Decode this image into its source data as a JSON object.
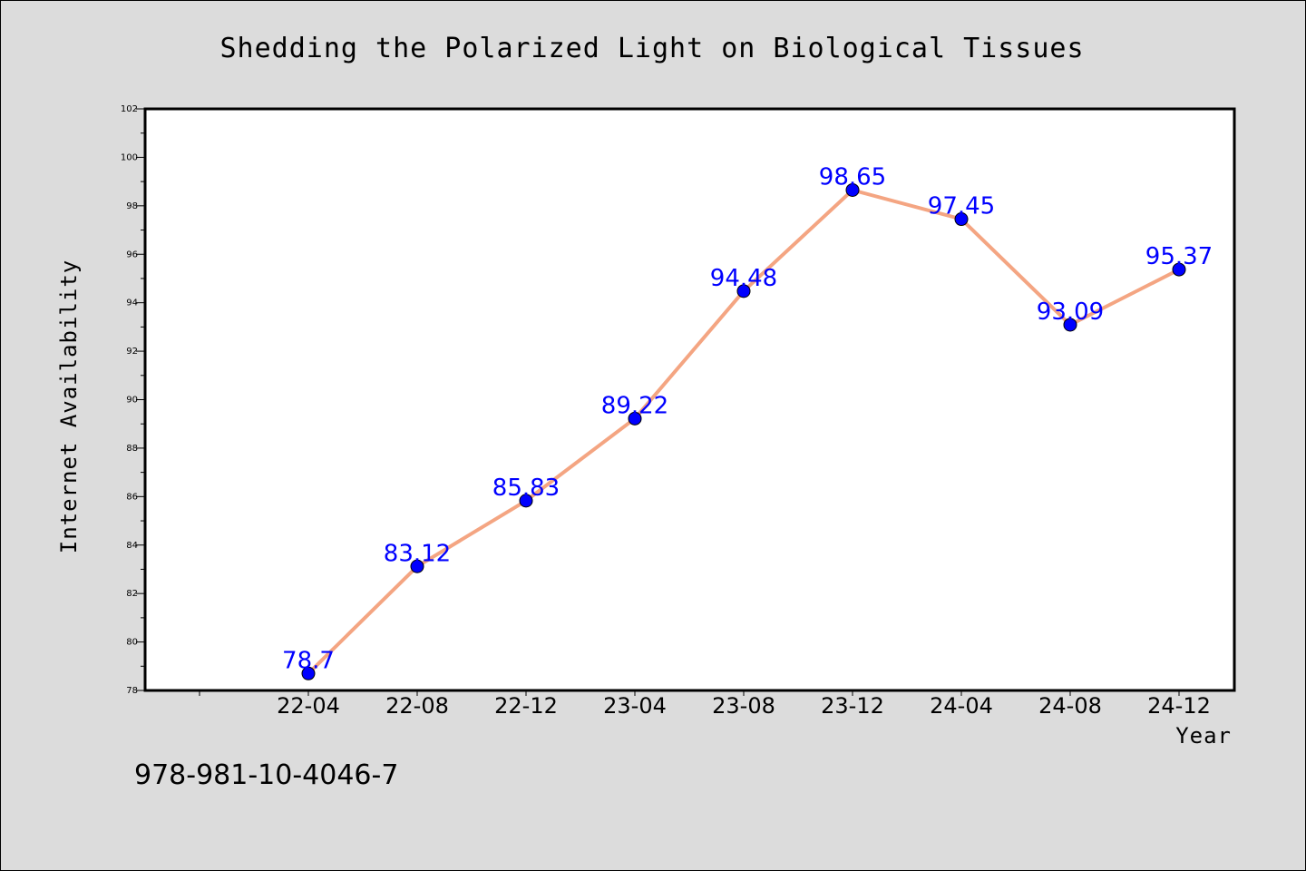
{
  "colors": {
    "background": "#dcdcdc",
    "plot_background": "#ffffff",
    "line": "#f4a582",
    "marker": "#0000ff",
    "label": "#0000ff"
  },
  "footnote": "978-981-10-4046-7",
  "chart_data": {
    "type": "line",
    "title": "Shedding the Polarized Light on Biological Tissues",
    "xlabel": "Year",
    "ylabel": "Internet Availability",
    "categories": [
      "22-04",
      "22-08",
      "22-12",
      "23-04",
      "23-08",
      "23-12",
      "24-04",
      "24-08",
      "24-12"
    ],
    "series": [
      {
        "values": [
          78.7,
          83.12,
          85.83,
          89.22,
          94.48,
          98.65,
          97.45,
          93.09,
          95.37
        ],
        "labels": [
          "78.7",
          "83.12",
          "85.83",
          "89.22",
          "94.48",
          "98.65",
          "97.45",
          "93.09",
          "95.37"
        ]
      }
    ],
    "ylim": [
      78,
      102
    ],
    "yticks": [
      "78",
      "80",
      "82",
      "84",
      "86",
      "88",
      "90",
      "92",
      "94",
      "96",
      "98",
      "100",
      "102"
    ],
    "grid": false,
    "legend": "none"
  }
}
